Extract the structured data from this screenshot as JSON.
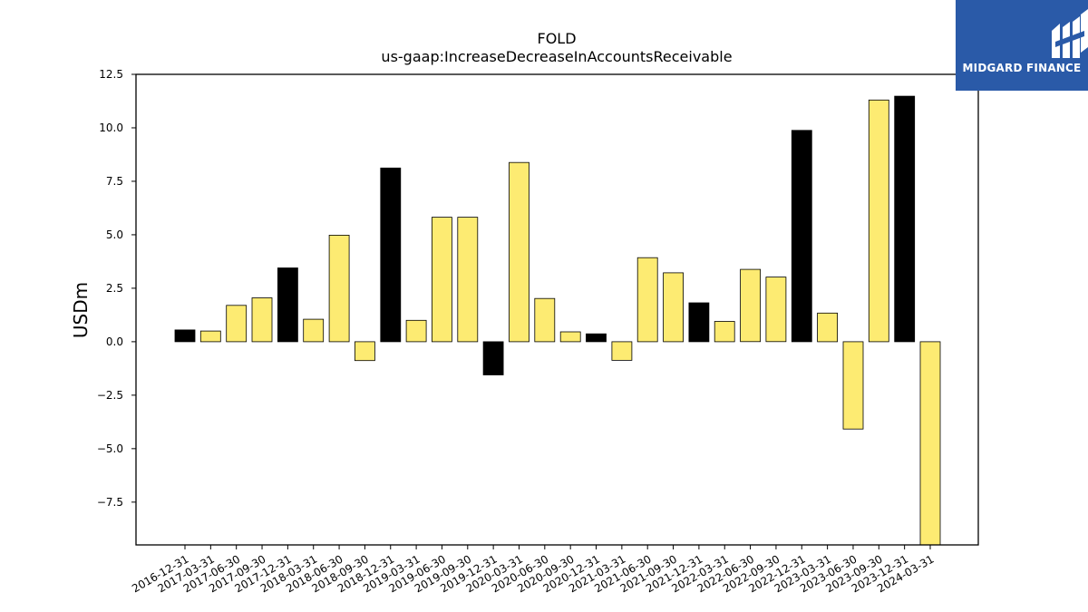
{
  "brand": {
    "name": "MIDGARD FINANCE",
    "bg_color": "#2a5aa8",
    "icon": "midgard-logo-icon"
  },
  "chart_data": {
    "type": "bar",
    "title": "FOLD",
    "subtitle": "us-gaap:IncreaseDecreaseInAccountsReceivable",
    "xlabel": "",
    "ylabel": "USDm",
    "ylim": [
      -9.5,
      12.5
    ],
    "yticks": [
      12.5,
      10.0,
      7.5,
      5.0,
      2.5,
      0.0,
      -2.5,
      -5.0,
      -7.5
    ],
    "ytick_labels": [
      "12.5",
      "10.0",
      "7.5",
      "5.0",
      "2.5",
      "0.0",
      "−2.5",
      "−5.0",
      "−7.5"
    ],
    "grid": false,
    "colors": {
      "quarter": "#fdeb72",
      "year_end": "#000000",
      "edge": "#000000"
    },
    "categories": [
      "2016-12-31",
      "2017-03-31",
      "2017-06-30",
      "2017-09-30",
      "2017-12-31",
      "2018-03-31",
      "2018-06-30",
      "2018-09-30",
      "2018-12-31",
      "2019-03-31",
      "2019-06-30",
      "2019-09-30",
      "2019-12-31",
      "2020-03-31",
      "2020-06-30",
      "2020-09-30",
      "2020-12-31",
      "2021-03-31",
      "2021-06-30",
      "2021-09-30",
      "2021-12-31",
      "2022-03-31",
      "2022-06-30",
      "2022-09-30",
      "2022-12-31",
      "2023-03-31",
      "2023-06-30",
      "2023-09-30",
      "2023-12-31",
      "2024-03-31"
    ],
    "values": [
      0.55,
      0.5,
      1.7,
      2.05,
      3.45,
      1.05,
      4.98,
      -0.88,
      8.12,
      1.0,
      5.82,
      5.82,
      -1.55,
      8.38,
      2.02,
      0.46,
      0.37,
      -0.87,
      3.93,
      3.22,
      1.82,
      0.95,
      3.38,
      3.02,
      9.88,
      1.34,
      -4.08,
      11.3,
      11.48,
      -9.5
    ]
  }
}
